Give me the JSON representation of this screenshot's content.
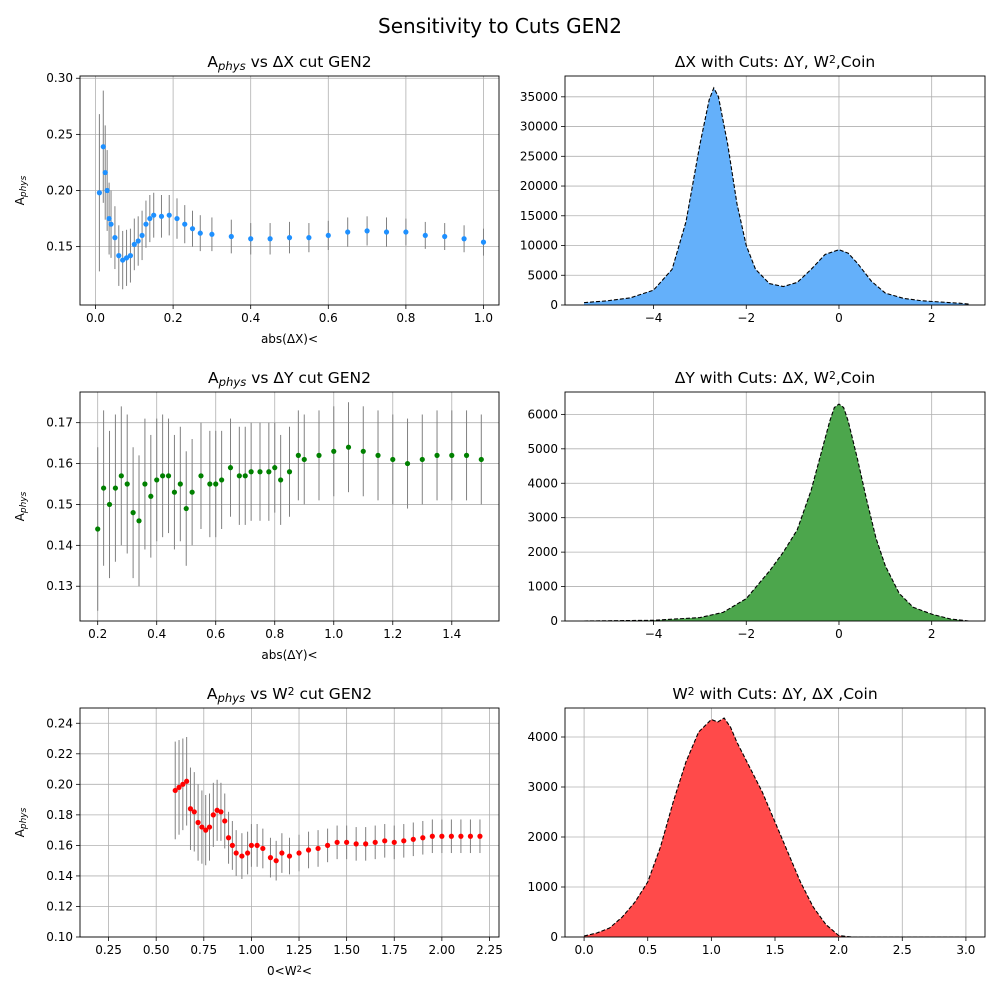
{
  "figure": {
    "suptitle": "Sensitivity to Cuts GEN2"
  },
  "chart_data": [
    {
      "type": "scatter",
      "title": "A_phys vs ΔX cut GEN2",
      "xlabel": "abs(ΔX)<",
      "ylabel": "A_phys",
      "xlim": [
        -0.04,
        1.04
      ],
      "ylim": [
        0.098,
        0.302
      ],
      "xticks": [
        "0.0",
        "0.2",
        "0.4",
        "0.6",
        "0.8",
        "1.0"
      ],
      "yticks": [
        "0.15",
        "0.20",
        "0.25",
        "0.30"
      ],
      "grid": true,
      "marker_color": "#1e90ff",
      "errorbar_color": "#808080",
      "x": [
        0.01,
        0.02,
        0.025,
        0.03,
        0.035,
        0.04,
        0.05,
        0.06,
        0.07,
        0.08,
        0.09,
        0.1,
        0.11,
        0.12,
        0.13,
        0.14,
        0.15,
        0.17,
        0.19,
        0.21,
        0.23,
        0.25,
        0.27,
        0.3,
        0.35,
        0.4,
        0.45,
        0.5,
        0.55,
        0.6,
        0.65,
        0.7,
        0.75,
        0.8,
        0.85,
        0.9,
        0.95,
        1.0
      ],
      "y": [
        0.198,
        0.239,
        0.216,
        0.2,
        0.175,
        0.17,
        0.158,
        0.142,
        0.138,
        0.14,
        0.142,
        0.152,
        0.155,
        0.16,
        0.17,
        0.175,
        0.178,
        0.177,
        0.178,
        0.175,
        0.17,
        0.166,
        0.162,
        0.161,
        0.159,
        0.157,
        0.157,
        0.158,
        0.158,
        0.16,
        0.163,
        0.164,
        0.163,
        0.163,
        0.16,
        0.159,
        0.157,
        0.154
      ],
      "err": [
        0.07,
        0.05,
        0.042,
        0.036,
        0.032,
        0.03,
        0.028,
        0.027,
        0.026,
        0.025,
        0.024,
        0.023,
        0.022,
        0.022,
        0.021,
        0.021,
        0.02,
        0.019,
        0.018,
        0.018,
        0.017,
        0.016,
        0.016,
        0.015,
        0.015,
        0.014,
        0.014,
        0.014,
        0.013,
        0.013,
        0.013,
        0.013,
        0.013,
        0.012,
        0.012,
        0.012,
        0.012,
        0.012
      ]
    },
    {
      "type": "area",
      "title": "ΔX with Cuts: ΔY, W^2,Coin",
      "xlabel": "",
      "ylabel": "",
      "xlim": [
        -5.91,
        3.15
      ],
      "ylim": [
        0,
        38500
      ],
      "xticks": [
        "−4",
        "−2",
        "0",
        "2"
      ],
      "yticks": [
        "0",
        "5000",
        "10000",
        "15000",
        "20000",
        "25000",
        "30000",
        "35000"
      ],
      "grid": true,
      "fill_color": "#64b0fa",
      "x": [
        -5.5,
        -5.0,
        -4.5,
        -4.0,
        -3.6,
        -3.3,
        -3.0,
        -2.8,
        -2.7,
        -2.6,
        -2.4,
        -2.2,
        -2.0,
        -1.8,
        -1.5,
        -1.2,
        -0.9,
        -0.6,
        -0.3,
        0.0,
        0.2,
        0.4,
        0.7,
        1.0,
        1.4,
        1.8,
        2.2,
        2.6,
        2.8
      ],
      "y": [
        400,
        700,
        1200,
        2500,
        6000,
        14000,
        27000,
        34500,
        36500,
        35000,
        27000,
        17000,
        10000,
        6000,
        3600,
        3100,
        3800,
        6000,
        8500,
        9300,
        8700,
        7000,
        4000,
        2000,
        1100,
        700,
        500,
        300,
        150
      ]
    },
    {
      "type": "scatter",
      "title": "A_phys vs ΔY cut GEN2",
      "xlabel": "abs(ΔY)<",
      "ylabel": "A_phys",
      "xlim": [
        0.14,
        1.56
      ],
      "ylim": [
        0.1215,
        0.1775
      ],
      "xticks": [
        "0.2",
        "0.4",
        "0.6",
        "0.8",
        "1.0",
        "1.2",
        "1.4"
      ],
      "yticks": [
        "0.13",
        "0.14",
        "0.15",
        "0.16",
        "0.17"
      ],
      "grid": true,
      "marker_color": "#008000",
      "errorbar_color": "#808080",
      "x": [
        0.2,
        0.22,
        0.24,
        0.26,
        0.28,
        0.3,
        0.32,
        0.34,
        0.36,
        0.38,
        0.4,
        0.42,
        0.44,
        0.46,
        0.48,
        0.5,
        0.52,
        0.55,
        0.58,
        0.6,
        0.62,
        0.65,
        0.68,
        0.7,
        0.72,
        0.75,
        0.78,
        0.8,
        0.82,
        0.85,
        0.88,
        0.9,
        0.95,
        1.0,
        1.05,
        1.1,
        1.15,
        1.2,
        1.25,
        1.3,
        1.35,
        1.4,
        1.45,
        1.5
      ],
      "y": [
        0.144,
        0.154,
        0.15,
        0.154,
        0.157,
        0.155,
        0.148,
        0.146,
        0.155,
        0.152,
        0.156,
        0.157,
        0.157,
        0.153,
        0.155,
        0.149,
        0.153,
        0.157,
        0.155,
        0.155,
        0.156,
        0.159,
        0.157,
        0.157,
        0.158,
        0.158,
        0.158,
        0.159,
        0.156,
        0.158,
        0.162,
        0.161,
        0.162,
        0.163,
        0.164,
        0.163,
        0.162,
        0.161,
        0.16,
        0.161,
        0.162,
        0.162,
        0.162,
        0.161
      ],
      "err": [
        0.02,
        0.019,
        0.018,
        0.018,
        0.017,
        0.017,
        0.016,
        0.016,
        0.016,
        0.015,
        0.015,
        0.015,
        0.014,
        0.014,
        0.014,
        0.014,
        0.013,
        0.013,
        0.013,
        0.013,
        0.012,
        0.012,
        0.012,
        0.012,
        0.012,
        0.012,
        0.012,
        0.011,
        0.011,
        0.011,
        0.011,
        0.011,
        0.011,
        0.011,
        0.011,
        0.011,
        0.011,
        0.011,
        0.011,
        0.011,
        0.011,
        0.011,
        0.011,
        0.011
      ]
    },
    {
      "type": "area",
      "title": "ΔY with Cuts: ΔX, W^2,Coin",
      "xlabel": "",
      "ylabel": "",
      "xlim": [
        -5.91,
        3.15
      ],
      "ylim": [
        0,
        6650
      ],
      "xticks": [
        "−4",
        "−2",
        "0",
        "2"
      ],
      "yticks": [
        "0",
        "1000",
        "2000",
        "3000",
        "4000",
        "5000",
        "6000"
      ],
      "grid": true,
      "fill_color": "#4ca64c",
      "x": [
        -5.5,
        -4.0,
        -3.0,
        -2.5,
        -2.0,
        -1.5,
        -1.2,
        -0.9,
        -0.6,
        -0.4,
        -0.2,
        -0.1,
        0.0,
        0.1,
        0.2,
        0.4,
        0.6,
        0.8,
        1.0,
        1.3,
        1.6,
        2.0,
        2.4,
        2.8
      ],
      "y": [
        0,
        20,
        100,
        250,
        650,
        1450,
        2000,
        2650,
        3800,
        4800,
        5800,
        6200,
        6300,
        6200,
        5800,
        4700,
        3500,
        2400,
        1600,
        800,
        400,
        200,
        60,
        0
      ]
    },
    {
      "type": "scatter",
      "title": "A_phys vs W^2 cut GEN2",
      "xlabel": "0<W^2<",
      "ylabel": "A_phys",
      "xlim": [
        0.1,
        2.3
      ],
      "ylim": [
        0.1,
        0.25
      ],
      "xticks": [
        "0.25",
        "0.50",
        "0.75",
        "1.00",
        "1.25",
        "1.50",
        "1.75",
        "2.00",
        "2.25"
      ],
      "yticks": [
        "0.10",
        "0.12",
        "0.14",
        "0.16",
        "0.18",
        "0.20",
        "0.22",
        "0.24"
      ],
      "grid": true,
      "marker_color": "#ff0000",
      "errorbar_color": "#808080",
      "x": [
        0.6,
        0.62,
        0.64,
        0.66,
        0.68,
        0.7,
        0.72,
        0.74,
        0.76,
        0.78,
        0.8,
        0.82,
        0.84,
        0.86,
        0.88,
        0.9,
        0.92,
        0.95,
        0.98,
        1.0,
        1.03,
        1.06,
        1.1,
        1.13,
        1.16,
        1.2,
        1.25,
        1.3,
        1.35,
        1.4,
        1.45,
        1.5,
        1.55,
        1.6,
        1.65,
        1.7,
        1.75,
        1.8,
        1.85,
        1.9,
        1.95,
        2.0,
        2.05,
        2.1,
        2.15,
        2.2
      ],
      "y": [
        0.196,
        0.198,
        0.2,
        0.202,
        0.184,
        0.182,
        0.175,
        0.172,
        0.17,
        0.172,
        0.18,
        0.183,
        0.182,
        0.176,
        0.165,
        0.16,
        0.155,
        0.153,
        0.155,
        0.16,
        0.16,
        0.158,
        0.152,
        0.15,
        0.155,
        0.153,
        0.155,
        0.157,
        0.158,
        0.16,
        0.162,
        0.162,
        0.161,
        0.161,
        0.162,
        0.163,
        0.162,
        0.163,
        0.164,
        0.165,
        0.166,
        0.166,
        0.166,
        0.166,
        0.166,
        0.166
      ],
      "err": [
        0.032,
        0.031,
        0.03,
        0.029,
        0.027,
        0.026,
        0.025,
        0.024,
        0.023,
        0.022,
        0.021,
        0.02,
        0.019,
        0.018,
        0.017,
        0.016,
        0.015,
        0.015,
        0.014,
        0.014,
        0.014,
        0.013,
        0.013,
        0.013,
        0.013,
        0.012,
        0.012,
        0.012,
        0.012,
        0.011,
        0.011,
        0.011,
        0.011,
        0.011,
        0.011,
        0.011,
        0.011,
        0.011,
        0.011,
        0.011,
        0.011,
        0.011,
        0.011,
        0.011,
        0.011,
        0.011
      ]
    },
    {
      "type": "area",
      "title": "W^2 with Cuts: ΔY, ΔX ,Coin",
      "xlabel": "",
      "ylabel": "",
      "xlim": [
        -0.15,
        3.15
      ],
      "ylim": [
        0,
        4580
      ],
      "xticks": [
        "0.0",
        "0.5",
        "1.0",
        "1.5",
        "2.0",
        "2.5",
        "3.0"
      ],
      "yticks": [
        "0",
        "1000",
        "2000",
        "3000",
        "4000"
      ],
      "grid": true,
      "fill_color": "#ff4a4a",
      "x": [
        0.0,
        0.1,
        0.2,
        0.3,
        0.4,
        0.5,
        0.6,
        0.7,
        0.8,
        0.9,
        1.0,
        1.05,
        1.1,
        1.15,
        1.2,
        1.3,
        1.4,
        1.5,
        1.6,
        1.7,
        1.8,
        1.9,
        2.0,
        2.1,
        2.5,
        3.0
      ],
      "y": [
        20,
        80,
        180,
        400,
        700,
        1100,
        1800,
        2700,
        3500,
        4100,
        4350,
        4300,
        4380,
        4200,
        3900,
        3400,
        2900,
        2300,
        1700,
        1100,
        600,
        250,
        30,
        0,
        0,
        0
      ]
    }
  ]
}
